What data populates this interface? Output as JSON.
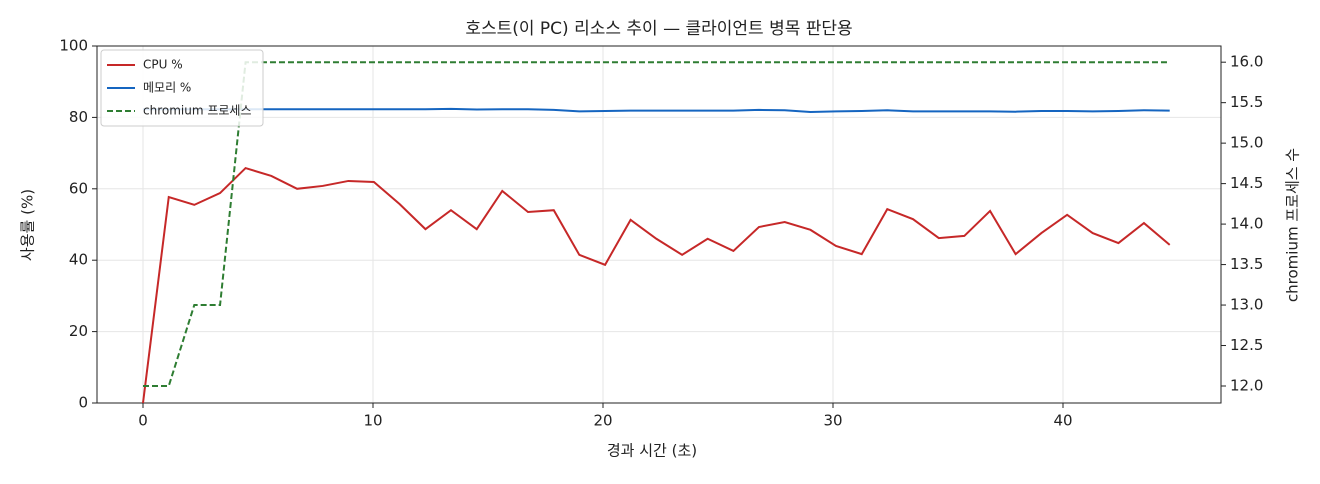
{
  "chart_data": {
    "type": "line",
    "title": "호스트(이 PC) 리소스 추이 — 클라이언트 병목 판단용",
    "x_label": "경과 시간 (초)",
    "y_label": "사용률 (%)",
    "y2_label": "chromium 프로세스 수",
    "x": [
      0,
      1.12,
      2.23,
      3.35,
      4.46,
      5.58,
      6.7,
      7.81,
      8.93,
      10.04,
      11.16,
      12.28,
      13.39,
      14.51,
      15.62,
      16.74,
      17.86,
      18.97,
      20.09,
      21.2,
      22.32,
      23.44,
      24.55,
      25.67,
      26.78,
      27.9,
      29.02,
      30.13,
      31.25,
      32.36,
      33.48,
      34.6,
      35.71,
      36.83,
      37.94,
      39.06,
      40.18,
      41.29,
      42.41,
      43.52,
      44.64
    ],
    "series": [
      {
        "name": "CPU %",
        "color": "#c62828",
        "linestyle": "solid",
        "values": [
          0,
          57.7,
          55.5,
          58.8,
          65.8,
          63.6,
          60,
          60.8,
          62.2,
          61.9,
          55.7,
          48.7,
          54,
          48.7,
          59.4,
          53.5,
          54,
          41.5,
          38.7,
          51.3,
          46,
          41.5,
          46,
          42.6,
          49.3,
          50.7,
          48.5,
          44,
          41.7,
          54.3,
          51.5,
          46.2,
          46.8,
          53.8,
          41.7,
          47.6,
          52.7,
          47.6,
          44.8,
          50.4,
          44.3
        ]
      },
      {
        "name": "메모리 %",
        "color": "#1565c0",
        "linestyle": "solid",
        "values": [
          82.3,
          82.3,
          82.3,
          82.3,
          82.3,
          82.3,
          82.3,
          82.3,
          82.3,
          82.3,
          82.3,
          82.3,
          82.4,
          82.2,
          82.3,
          82.3,
          82.1,
          81.7,
          81.8,
          81.9,
          81.9,
          81.9,
          81.9,
          81.9,
          82.1,
          82,
          81.5,
          81.7,
          81.8,
          82,
          81.7,
          81.7,
          81.7,
          81.7,
          81.6,
          81.8,
          81.8,
          81.7,
          81.8,
          82,
          81.9
        ]
      },
      {
        "name": "chromium 프로세스",
        "color": "#2e7d32",
        "linestyle": "dashed",
        "axis": "y2",
        "values": [
          12,
          12,
          13,
          13,
          16,
          16,
          16,
          16,
          16,
          16,
          16,
          16,
          16,
          16,
          16,
          16,
          16,
          16,
          16,
          16,
          16,
          16,
          16,
          16,
          16,
          16,
          16,
          16,
          16,
          16,
          16,
          16,
          16,
          16,
          16,
          16,
          16,
          16,
          16,
          16,
          16
        ]
      }
    ],
    "xlim": [
      -2,
      46.87
    ],
    "xticks": [
      0,
      10,
      20,
      30,
      40
    ],
    "ylim": [
      0,
      100
    ],
    "yticks": [
      0,
      20,
      40,
      60,
      80,
      100
    ],
    "y2lim": [
      11.79,
      16.2
    ],
    "y2ticks": [
      {
        "value": 12,
        "label": "12.0"
      },
      {
        "value": 12.5,
        "label": "12.5"
      },
      {
        "value": 13,
        "label": "13.0"
      },
      {
        "value": 13.5,
        "label": "13.5"
      },
      {
        "value": 14,
        "label": "14.0"
      },
      {
        "value": 14.5,
        "label": "14.5"
      },
      {
        "value": 15,
        "label": "15.0"
      },
      {
        "value": 15.5,
        "label": "15.5"
      },
      {
        "value": 16,
        "label": "16.0"
      }
    ],
    "grid": true,
    "legend": "upper left"
  }
}
